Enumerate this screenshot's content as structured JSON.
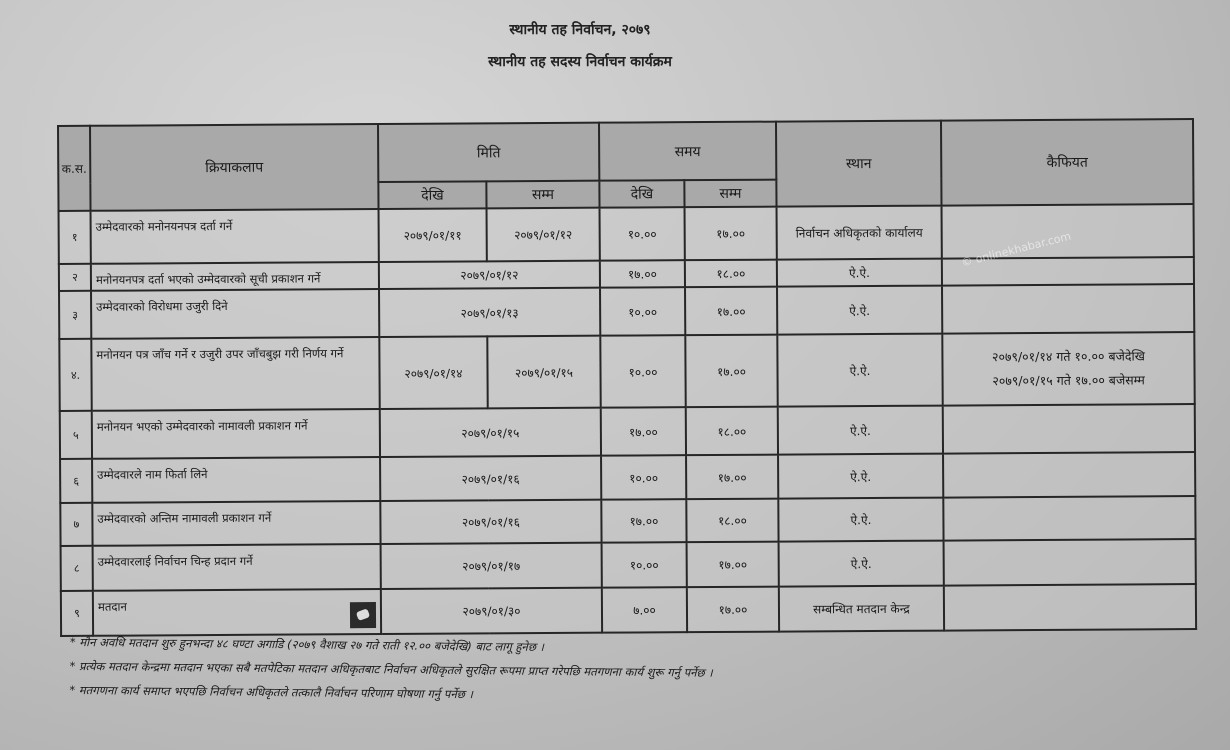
{
  "header": {
    "title": "स्थानीय तह निर्वाचन, २०७९",
    "subtitle": "स्थानीय तह सदस्य निर्वाचन कार्यक्रम"
  },
  "table": {
    "headers": {
      "serial": "क.स.",
      "activity": "क्रियाकलाप",
      "date": "मिति",
      "time": "समय",
      "from": "देखि",
      "to": "सम्म",
      "place": "स्थान",
      "remarks": "कैफियत"
    },
    "rows": [
      {
        "sn": "१",
        "activity": "उम्मेदवारको मनोनयनपत्र दर्ता गर्ने",
        "date_from": "२०७९/०१/११",
        "date_to": "२०७९/०१/१२",
        "time_from": "१०.००",
        "time_to": "१७.००",
        "place": "निर्वाचन अधिकृतको कार्यालय",
        "remarks": ""
      },
      {
        "sn": "२",
        "activity": "मनोनयनपत्र दर्ता भएको उम्मेदवारको सूची प्रकाशन गर्ने",
        "date": "२०७९/०१/१२",
        "time_from": "१७.००",
        "time_to": "१८.००",
        "place": "ऐ.ऐ.",
        "remarks": ""
      },
      {
        "sn": "३",
        "activity": "उम्मेदवारको विरोधमा उजुरी दिने",
        "date": "२०७९/०१/१३",
        "time_from": "१०.००",
        "time_to": "१७.००",
        "place": "ऐ.ऐ.",
        "remarks": ""
      },
      {
        "sn": "४.",
        "activity": "मनोनयन पत्र जाँच गर्ने र उजुरी उपर जाँचबुझ गरी निर्णय गर्ने",
        "date_from": "२०७९/०१/१४",
        "date_to": "२०७९/०१/१५",
        "time_from": "१०.००",
        "time_to": "१७.००",
        "place": "ऐ.ऐ.",
        "remarks_1": "२०७९/०१/१४ गते १०.०० बजेदेखि",
        "remarks_2": "२०७९/०१/१५ गते १७.०० बजेसम्म"
      },
      {
        "sn": "५",
        "activity": "मनोनयन भएको उम्मेदवारको नामावली प्रकाशन गर्ने",
        "date": "२०७९/०१/१५",
        "time_from": "१७.००",
        "time_to": "१८.००",
        "place": "ऐ.ऐ.",
        "remarks": ""
      },
      {
        "sn": "६",
        "activity": "उम्मेदवारले नाम फिर्ता लिने",
        "date": "२०७९/०१/१६",
        "time_from": "१०.००",
        "time_to": "१७.००",
        "place": "ऐ.ऐ.",
        "remarks": ""
      },
      {
        "sn": "७",
        "activity": "उम्मेदवारको अन्तिम नामावली प्रकाशन गर्ने",
        "date": "२०७९/०१/१६",
        "time_from": "१७.००",
        "time_to": "१८.००",
        "place": "ऐ.ऐ.",
        "remarks": ""
      },
      {
        "sn": "८",
        "activity": "उम्मेदवारलाई निर्वाचन चिन्ह प्रदान गर्ने",
        "date": "२०७९/०१/१७",
        "time_from": "१०.००",
        "time_to": "१७.००",
        "place": "ऐ.ऐ.",
        "remarks": ""
      },
      {
        "sn": "९",
        "activity": "मतदान",
        "icon": "ballot-icon",
        "date": "२०७९/०१/३०",
        "time_from": "७.००",
        "time_to": "१७.००",
        "place": "सम्बन्धित मतदान केन्द्र",
        "remarks": ""
      }
    ]
  },
  "notes": [
    "मौन अवधि मतदान शुरु हुनभन्दा ४८ घण्टा अगाडि (२०७९ वैशाख २७ गते राती १२.०० बजेदेखि) बाट लागू हुनेछ ।",
    "प्रत्येक मतदान केन्द्रमा मतदान भएका सबै मतपेटिका मतदान अधिकृतबाट निर्वाचन अधिकृतले सुरक्षित रूपमा प्राप्त गरेपछि मतगणना कार्य शुरू गर्नु पर्नेछ ।",
    "मतगणना कार्य समाप्त भएपछि निर्वाचन अधिकृतले तत्कालै निर्वाचन परिणाम घोषणा गर्नु पर्नेछ ।"
  ],
  "watermark": "© onlinekhabar.com"
}
